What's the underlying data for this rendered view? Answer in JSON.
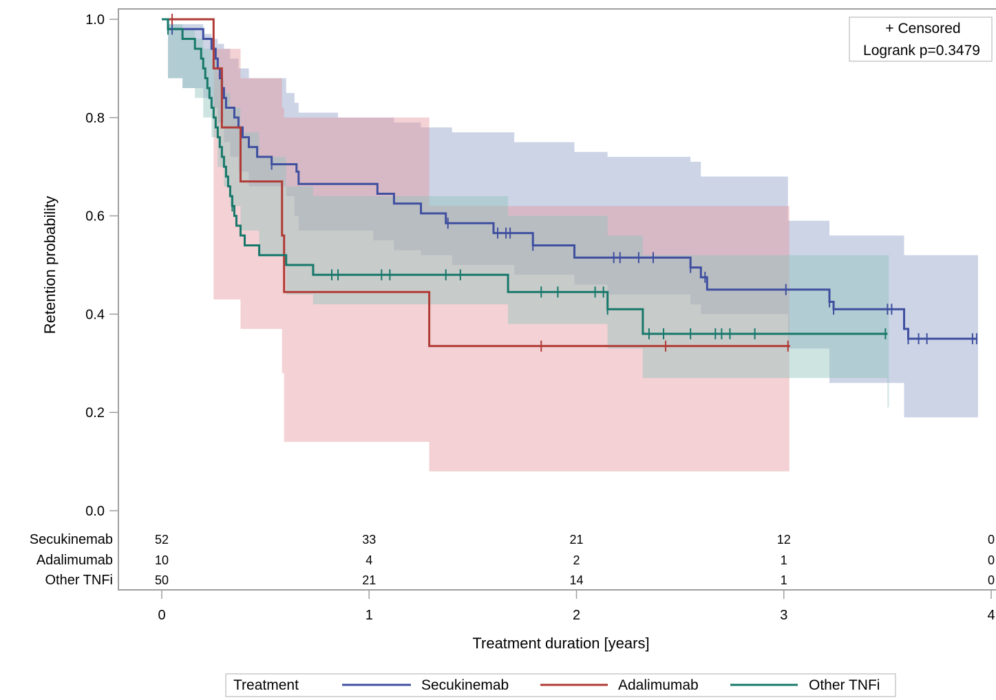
{
  "chart_data": {
    "type": "line",
    "subtype": "kaplan-meier",
    "title": "",
    "xlabel": "Treatment duration [years]",
    "ylabel": "Retention probability",
    "xlim": [
      0,
      4
    ],
    "ylim": [
      0,
      1
    ],
    "x_ticks": [
      "0",
      "1",
      "2",
      "3",
      "4"
    ],
    "y_ticks": [
      "0.0",
      "0.2",
      "0.4",
      "0.6",
      "0.8",
      "1.0"
    ],
    "grid": false,
    "annotation": {
      "censored_label": "+ Censored",
      "logrank_label": "Logrank p=0.3479",
      "placement": "top-right"
    },
    "legend": {
      "title": "Treatment",
      "placement": "bottom",
      "entries": [
        "Secukinemab",
        "Adalimumab",
        "Other TNFi"
      ]
    },
    "risk_table": {
      "times": [
        0,
        1,
        2,
        3,
        4
      ],
      "rows": [
        {
          "label": "Secukinemab",
          "values": [
            "52",
            "33",
            "21",
            "12",
            "0"
          ]
        },
        {
          "label": "Adalimumab",
          "values": [
            "10",
            "4",
            "2",
            "1",
            "0"
          ]
        },
        {
          "label": "Other TNFi",
          "values": [
            "50",
            "21",
            "14",
            "1",
            "0"
          ]
        }
      ]
    },
    "series": [
      {
        "name": "Secukinemab",
        "color": "#3f4f9f",
        "band_color": "#8fa0c8",
        "steps": [
          [
            0,
            1.0
          ],
          [
            0.03,
            0.98
          ],
          [
            0.2,
            0.96
          ],
          [
            0.24,
            0.94
          ],
          [
            0.26,
            0.92
          ],
          [
            0.27,
            0.9
          ],
          [
            0.28,
            0.88
          ],
          [
            0.29,
            0.86
          ],
          [
            0.3,
            0.84
          ],
          [
            0.31,
            0.82
          ],
          [
            0.35,
            0.8
          ],
          [
            0.37,
            0.78
          ],
          [
            0.39,
            0.76
          ],
          [
            0.42,
            0.74
          ],
          [
            0.46,
            0.72
          ],
          [
            0.53,
            0.705
          ],
          [
            0.65,
            0.69
          ],
          [
            0.66,
            0.665
          ],
          [
            1.04,
            0.645
          ],
          [
            1.12,
            0.625
          ],
          [
            1.25,
            0.605
          ],
          [
            1.37,
            0.585
          ],
          [
            1.6,
            0.565
          ],
          [
            1.79,
            0.54
          ],
          [
            1.99,
            0.515
          ],
          [
            2.55,
            0.495
          ],
          [
            2.6,
            0.475
          ],
          [
            2.63,
            0.45
          ],
          [
            3.22,
            0.425
          ],
          [
            3.24,
            0.41
          ],
          [
            3.58,
            0.37
          ],
          [
            3.6,
            0.35
          ],
          [
            3.93,
            0.35
          ]
        ],
        "censored": [
          0.05,
          0.53,
          1.38,
          1.62,
          1.66,
          1.68,
          1.79,
          2.18,
          2.21,
          2.3,
          2.37,
          2.55,
          2.62,
          3.01,
          3.22,
          3.24,
          3.5,
          3.52,
          3.6,
          3.65,
          3.69,
          3.91,
          3.93
        ],
        "band": [
          [
            0,
            1.0,
            1.0
          ],
          [
            0.03,
            0.99,
            0.88
          ],
          [
            0.1,
            0.99,
            0.86
          ],
          [
            0.2,
            0.97,
            0.84
          ],
          [
            0.24,
            0.96,
            0.82
          ],
          [
            0.27,
            0.95,
            0.79
          ],
          [
            0.3,
            0.94,
            0.75
          ],
          [
            0.33,
            0.92,
            0.72
          ],
          [
            0.37,
            0.9,
            0.69
          ],
          [
            0.42,
            0.88,
            0.66
          ],
          [
            0.6,
            0.85,
            0.64
          ],
          [
            0.64,
            0.83,
            0.6
          ],
          [
            0.66,
            0.81,
            0.57
          ],
          [
            0.85,
            0.8,
            0.57
          ],
          [
            1.02,
            0.8,
            0.55
          ],
          [
            1.12,
            0.79,
            0.53
          ],
          [
            1.25,
            0.78,
            0.52
          ],
          [
            1.4,
            0.77,
            0.5
          ],
          [
            1.7,
            0.75,
            0.48
          ],
          [
            1.99,
            0.73,
            0.46
          ],
          [
            2.15,
            0.72,
            0.44
          ],
          [
            2.55,
            0.71,
            0.42
          ],
          [
            2.6,
            0.68,
            0.4
          ],
          [
            3.02,
            0.59,
            0.33
          ],
          [
            3.22,
            0.56,
            0.26
          ],
          [
            3.58,
            0.52,
            0.19
          ],
          [
            3.93,
            0.52,
            0.19
          ]
        ]
      },
      {
        "name": "Adalimumab",
        "color": "#b03a35",
        "band_color": "#e49aa0",
        "steps": [
          [
            0,
            1.0
          ],
          [
            0.25,
            0.9
          ],
          [
            0.29,
            0.78
          ],
          [
            0.38,
            0.67
          ],
          [
            0.58,
            0.56
          ],
          [
            0.59,
            0.445
          ],
          [
            1.29,
            0.335
          ],
          [
            3.03,
            0.335
          ]
        ],
        "censored": [
          0.05,
          1.83,
          2.43,
          3.02
        ],
        "band": [
          [
            0,
            1.0,
            1.0
          ],
          [
            0.25,
            0.94,
            0.43
          ],
          [
            0.38,
            0.88,
            0.37
          ],
          [
            0.58,
            0.82,
            0.28
          ],
          [
            0.59,
            0.8,
            0.14
          ],
          [
            1.29,
            0.62,
            0.08
          ],
          [
            3.02,
            0.62,
            0.08
          ]
        ]
      },
      {
        "name": "Other TNFi",
        "color": "#17786a",
        "band_color": "#93c3bc",
        "steps": [
          [
            0,
            1.0
          ],
          [
            0.03,
            0.98
          ],
          [
            0.1,
            0.96
          ],
          [
            0.16,
            0.94
          ],
          [
            0.19,
            0.92
          ],
          [
            0.2,
            0.9
          ],
          [
            0.21,
            0.88
          ],
          [
            0.22,
            0.86
          ],
          [
            0.23,
            0.84
          ],
          [
            0.24,
            0.82
          ],
          [
            0.25,
            0.8
          ],
          [
            0.26,
            0.78
          ],
          [
            0.27,
            0.76
          ],
          [
            0.28,
            0.74
          ],
          [
            0.29,
            0.72
          ],
          [
            0.3,
            0.7
          ],
          [
            0.31,
            0.68
          ],
          [
            0.32,
            0.66
          ],
          [
            0.33,
            0.64
          ],
          [
            0.34,
            0.62
          ],
          [
            0.35,
            0.6
          ],
          [
            0.36,
            0.58
          ],
          [
            0.38,
            0.56
          ],
          [
            0.4,
            0.54
          ],
          [
            0.47,
            0.52
          ],
          [
            0.6,
            0.5
          ],
          [
            0.73,
            0.48
          ],
          [
            1.67,
            0.445
          ],
          [
            2.15,
            0.41
          ],
          [
            2.32,
            0.36
          ],
          [
            3.5,
            0.36
          ]
        ],
        "censored": [
          0.03,
          0.34,
          0.82,
          0.85,
          1.06,
          1.1,
          1.37,
          1.44,
          1.83,
          1.91,
          2.09,
          2.13,
          2.15,
          2.35,
          2.42,
          2.55,
          2.67,
          2.7,
          2.74,
          2.86,
          3.49
        ],
        "band": [
          [
            0,
            1.0,
            1.0
          ],
          [
            0.03,
            0.99,
            0.88
          ],
          [
            0.1,
            0.98,
            0.86
          ],
          [
            0.16,
            0.96,
            0.84
          ],
          [
            0.2,
            0.94,
            0.8
          ],
          [
            0.24,
            0.92,
            0.76
          ],
          [
            0.27,
            0.88,
            0.7
          ],
          [
            0.3,
            0.85,
            0.66
          ],
          [
            0.33,
            0.82,
            0.62
          ],
          [
            0.38,
            0.77,
            0.57
          ],
          [
            0.47,
            0.72,
            0.52
          ],
          [
            0.6,
            0.66,
            0.44
          ],
          [
            0.73,
            0.64,
            0.42
          ],
          [
            1.67,
            0.6,
            0.38
          ],
          [
            2.15,
            0.56,
            0.33
          ],
          [
            2.32,
            0.52,
            0.27
          ],
          [
            3.5,
            0.52,
            0.21
          ]
        ]
      }
    ]
  }
}
